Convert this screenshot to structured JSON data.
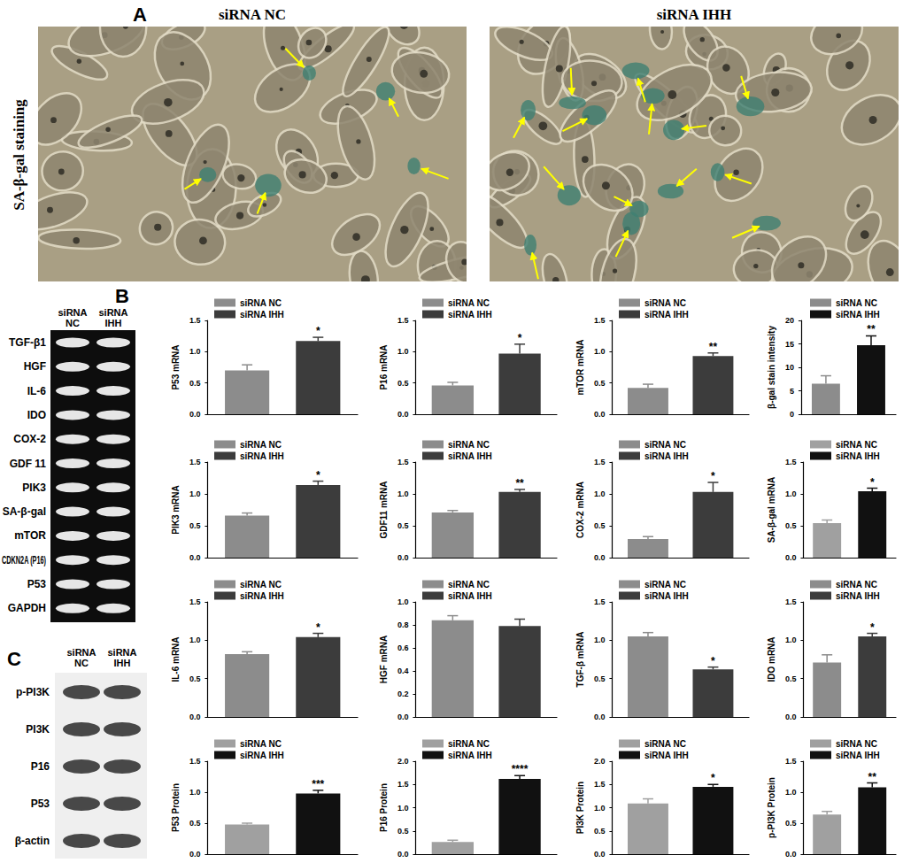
{
  "figure": {
    "panel_a": {
      "label": "A",
      "row_label": "SA-β-gal staining",
      "images": [
        {
          "title": "siRNA NC"
        },
        {
          "title": "siRNA IHH"
        }
      ]
    },
    "panel_b": {
      "label": "B",
      "lanes": [
        "siRNA NC",
        "siRNA IHH"
      ],
      "bands": [
        "TGF-β1",
        "HGF",
        "IL-6",
        "IDO",
        "COX-2",
        "GDF 11",
        "PIK3",
        "SA-β-gal",
        "mTOR",
        "CDKN2A (P16)",
        "P53",
        "GAPDH"
      ]
    },
    "panel_c": {
      "label": "C",
      "lanes": [
        "siRNA NC",
        "siRNA IHH"
      ],
      "bands": [
        "p-PI3K",
        "PI3K",
        "P16",
        "P53",
        "β-actin"
      ]
    }
  },
  "chart_data": [
    {
      "type": "bar",
      "ylabel": "P53 mRNA",
      "categories": [
        null
      ],
      "ylim": [
        0,
        1.5
      ],
      "yticks": [
        {
          "value": 0,
          "label": "0.0"
        },
        0.5,
        {
          "value": 1,
          "label": "1.0"
        },
        1.5
      ],
      "grid": false,
      "legend": "top",
      "tick_labels": "y",
      "series": [
        {
          "name": "siRNA NC",
          "color": "#8c8c8c",
          "values": [
            0.7
          ],
          "errors": [
            0.09
          ]
        },
        {
          "name": "siRNA IHH",
          "color": "#3c3c3c",
          "values": [
            1.17
          ],
          "errors": [
            0.06
          ],
          "annotation": "*"
        }
      ]
    },
    {
      "type": "bar",
      "ylabel": "P16 mRNA",
      "categories": [
        null
      ],
      "ylim": [
        0,
        1.5
      ],
      "yticks": [
        {
          "value": 0,
          "label": "0.0"
        },
        0.5,
        {
          "value": 1,
          "label": "1.0"
        },
        1.5
      ],
      "grid": false,
      "legend": "top",
      "tick_labels": "y",
      "series": [
        {
          "name": "siRNA NC",
          "color": "#8c8c8c",
          "values": [
            0.46
          ],
          "errors": [
            0.05
          ]
        },
        {
          "name": "siRNA IHH",
          "color": "#3c3c3c",
          "values": [
            0.97
          ],
          "errors": [
            0.15
          ],
          "annotation": "*"
        }
      ]
    },
    {
      "type": "bar",
      "ylabel": "mTOR mRNA",
      "categories": [
        null
      ],
      "ylim": [
        0,
        1.5
      ],
      "yticks": [
        {
          "value": 0,
          "label": "0.0"
        },
        0.5,
        {
          "value": 1,
          "label": "1.0"
        },
        1.5
      ],
      "grid": false,
      "legend": "top",
      "tick_labels": "y",
      "series": [
        {
          "name": "siRNA NC",
          "color": "#8c8c8c",
          "values": [
            0.42
          ],
          "errors": [
            0.06
          ]
        },
        {
          "name": "siRNA IHH",
          "color": "#3c3c3c",
          "values": [
            0.93
          ],
          "errors": [
            0.05
          ],
          "annotation": "**"
        }
      ]
    },
    {
      "type": "bar",
      "ylabel": "β-gal stain intensity",
      "categories": [
        null
      ],
      "ylim": [
        0,
        20
      ],
      "yticks": [
        0,
        5,
        10,
        15,
        20
      ],
      "grid": false,
      "legend": "top",
      "tick_labels": "y",
      "series": [
        {
          "name": "siRNA NC",
          "color": "#8c8c8c",
          "values": [
            6.5
          ],
          "errors": [
            1.7
          ]
        },
        {
          "name": "siRNA IHH",
          "color": "#111111",
          "values": [
            14.7
          ],
          "errors": [
            2.0
          ],
          "annotation": "**"
        }
      ]
    },
    {
      "type": "bar",
      "ylabel": "PIK3 mRNA",
      "categories": [
        null
      ],
      "ylim": [
        0,
        1.5
      ],
      "yticks": [
        {
          "value": 0,
          "label": "0.0"
        },
        0.5,
        {
          "value": 1,
          "label": "1.0"
        },
        1.5
      ],
      "grid": false,
      "legend": "top",
      "tick_labels": "y",
      "series": [
        {
          "name": "siRNA NC",
          "color": "#8c8c8c",
          "values": [
            0.66
          ],
          "errors": [
            0.04
          ]
        },
        {
          "name": "siRNA IHH",
          "color": "#3c3c3c",
          "values": [
            1.14
          ],
          "errors": [
            0.06
          ],
          "annotation": "*"
        }
      ]
    },
    {
      "type": "bar",
      "ylabel": "GDF11 mRNA",
      "categories": [
        null
      ],
      "ylim": [
        0,
        1.5
      ],
      "yticks": [
        {
          "value": 0,
          "label": "0.0"
        },
        0.5,
        {
          "value": 1,
          "label": "1.0"
        },
        1.5
      ],
      "grid": false,
      "legend": "top",
      "tick_labels": "y",
      "series": [
        {
          "name": "siRNA NC",
          "color": "#8c8c8c",
          "values": [
            0.71
          ],
          "errors": [
            0.03
          ]
        },
        {
          "name": "siRNA IHH",
          "color": "#3c3c3c",
          "values": [
            1.03
          ],
          "errors": [
            0.04
          ],
          "annotation": "**"
        }
      ]
    },
    {
      "type": "bar",
      "ylabel": "COX-2 mRNA",
      "categories": [
        null
      ],
      "ylim": [
        0,
        1.5
      ],
      "yticks": [
        {
          "value": 0,
          "label": "0.0"
        },
        0.5,
        {
          "value": 1,
          "label": "1.0"
        },
        1.5
      ],
      "grid": false,
      "legend": "top",
      "tick_labels": "y",
      "series": [
        {
          "name": "siRNA NC",
          "color": "#8c8c8c",
          "values": [
            0.29
          ],
          "errors": [
            0.04
          ]
        },
        {
          "name": "siRNA IHH",
          "color": "#3c3c3c",
          "values": [
            1.03
          ],
          "errors": [
            0.15
          ],
          "annotation": "*"
        }
      ]
    },
    {
      "type": "bar",
      "ylabel": "SA-β-gal mRNA",
      "categories": [
        null
      ],
      "ylim": [
        0,
        1.5
      ],
      "yticks": [
        {
          "value": 0,
          "label": "0.0"
        },
        0.5,
        {
          "value": 1,
          "label": "1.0"
        },
        1.5
      ],
      "grid": false,
      "legend": "top",
      "tick_labels": "y",
      "series": [
        {
          "name": "siRNA NC",
          "color": "#a0a0a0",
          "values": [
            0.54
          ],
          "errors": [
            0.05
          ]
        },
        {
          "name": "siRNA IHH",
          "color": "#111111",
          "values": [
            1.04
          ],
          "errors": [
            0.05
          ],
          "annotation": "*"
        }
      ]
    },
    {
      "type": "bar",
      "ylabel": "IL-6 mRNA",
      "categories": [
        null
      ],
      "ylim": [
        0,
        1.5
      ],
      "yticks": [
        {
          "value": 0,
          "label": "0.0"
        },
        0.5,
        {
          "value": 1,
          "label": "1.0"
        },
        1.5
      ],
      "grid": false,
      "legend": "top",
      "tick_labels": "y",
      "series": [
        {
          "name": "siRNA NC",
          "color": "#8c8c8c",
          "values": [
            0.82
          ],
          "errors": [
            0.03
          ]
        },
        {
          "name": "siRNA IHH",
          "color": "#3c3c3c",
          "values": [
            1.04
          ],
          "errors": [
            0.05
          ],
          "annotation": "*"
        }
      ]
    },
    {
      "type": "bar",
      "ylabel": "HGF mRNA",
      "categories": [
        null
      ],
      "ylim": [
        0,
        1
      ],
      "yticks": [
        {
          "value": 0,
          "label": "0.0"
        },
        0.2,
        0.4,
        0.6,
        0.8,
        {
          "value": 1,
          "label": "1.0"
        }
      ],
      "grid": false,
      "legend": "top",
      "tick_labels": "y",
      "series": [
        {
          "name": "siRNA NC",
          "color": "#8c8c8c",
          "values": [
            0.84
          ],
          "errors": [
            0.04
          ]
        },
        {
          "name": "siRNA IHH",
          "color": "#3c3c3c",
          "values": [
            0.79
          ],
          "errors": [
            0.06
          ]
        }
      ]
    },
    {
      "type": "bar",
      "ylabel": "TGF-β mRNA",
      "categories": [
        null
      ],
      "ylim": [
        0,
        1.5
      ],
      "yticks": [
        {
          "value": 0,
          "label": "0.0"
        },
        0.5,
        {
          "value": 1,
          "label": "1.0"
        },
        1.5
      ],
      "grid": false,
      "legend": "top",
      "tick_labels": "y",
      "series": [
        {
          "name": "siRNA NC",
          "color": "#8c8c8c",
          "values": [
            1.05
          ],
          "errors": [
            0.05
          ]
        },
        {
          "name": "siRNA IHH",
          "color": "#3c3c3c",
          "values": [
            0.62
          ],
          "errors": [
            0.03
          ],
          "annotation": "*"
        }
      ]
    },
    {
      "type": "bar",
      "ylabel": "IDO mRNA",
      "categories": [
        null
      ],
      "ylim": [
        0,
        1.5
      ],
      "yticks": [
        {
          "value": 0,
          "label": "0.0"
        },
        0.5,
        {
          "value": 1,
          "label": "1.0"
        },
        1.5
      ],
      "grid": false,
      "legend": "top",
      "tick_labels": "y",
      "series": [
        {
          "name": "siRNA NC",
          "color": "#8c8c8c",
          "values": [
            0.71
          ],
          "errors": [
            0.1
          ]
        },
        {
          "name": "siRNA IHH",
          "color": "#3c3c3c",
          "values": [
            1.05
          ],
          "errors": [
            0.04
          ],
          "annotation": "*"
        }
      ]
    },
    {
      "type": "bar",
      "ylabel": "P53 Protein",
      "categories": [
        null
      ],
      "ylim": [
        0,
        1.5
      ],
      "yticks": [
        {
          "value": 0,
          "label": "0.0"
        },
        0.5,
        {
          "value": 1,
          "label": "1.0"
        },
        1.5
      ],
      "grid": false,
      "legend": "top",
      "tick_labels": "y",
      "series": [
        {
          "name": "siRNA NC",
          "color": "#a0a0a0",
          "values": [
            0.48
          ],
          "errors": [
            0.02
          ]
        },
        {
          "name": "siRNA IHH",
          "color": "#111111",
          "values": [
            0.98
          ],
          "errors": [
            0.05
          ],
          "annotation": "***"
        }
      ]
    },
    {
      "type": "bar",
      "ylabel": "P16 Protein",
      "categories": [
        null
      ],
      "ylim": [
        0,
        2
      ],
      "yticks": [
        {
          "value": 0,
          "label": "0.0"
        },
        0.5,
        {
          "value": 1,
          "label": "1.0"
        },
        1.5,
        {
          "value": 2,
          "label": "2.0"
        }
      ],
      "grid": false,
      "legend": "top",
      "tick_labels": "y",
      "series": [
        {
          "name": "siRNA NC",
          "color": "#a0a0a0",
          "values": [
            0.26
          ],
          "errors": [
            0.04
          ]
        },
        {
          "name": "siRNA IHH",
          "color": "#111111",
          "values": [
            1.62
          ],
          "errors": [
            0.07
          ],
          "annotation": "****"
        }
      ]
    },
    {
      "type": "bar",
      "ylabel": "PI3K Protein",
      "categories": [
        null
      ],
      "ylim": [
        0,
        2
      ],
      "yticks": [
        {
          "value": 0,
          "label": "0.0"
        },
        0.5,
        {
          "value": 1,
          "label": "1.0"
        },
        1.5,
        {
          "value": 2,
          "label": "2.0"
        }
      ],
      "grid": false,
      "legend": "top",
      "tick_labels": "y",
      "series": [
        {
          "name": "siRNA NC",
          "color": "#a0a0a0",
          "values": [
            1.09
          ],
          "errors": [
            0.1
          ]
        },
        {
          "name": "siRNA IHH",
          "color": "#111111",
          "values": [
            1.45
          ],
          "errors": [
            0.05
          ],
          "annotation": "*"
        }
      ]
    },
    {
      "type": "bar",
      "ylabel": "p-PI3K Protein",
      "categories": [
        null
      ],
      "ylim": [
        0,
        1.5
      ],
      "yticks": [
        {
          "value": 0,
          "label": "0.0"
        },
        0.5,
        {
          "value": 1,
          "label": "1.0"
        },
        1.5
      ],
      "grid": false,
      "legend": "top",
      "tick_labels": "y",
      "series": [
        {
          "name": "siRNA NC",
          "color": "#a0a0a0",
          "values": [
            0.64
          ],
          "errors": [
            0.05
          ]
        },
        {
          "name": "siRNA IHH",
          "color": "#111111",
          "values": [
            1.08
          ],
          "errors": [
            0.07
          ],
          "annotation": "**"
        }
      ]
    }
  ]
}
